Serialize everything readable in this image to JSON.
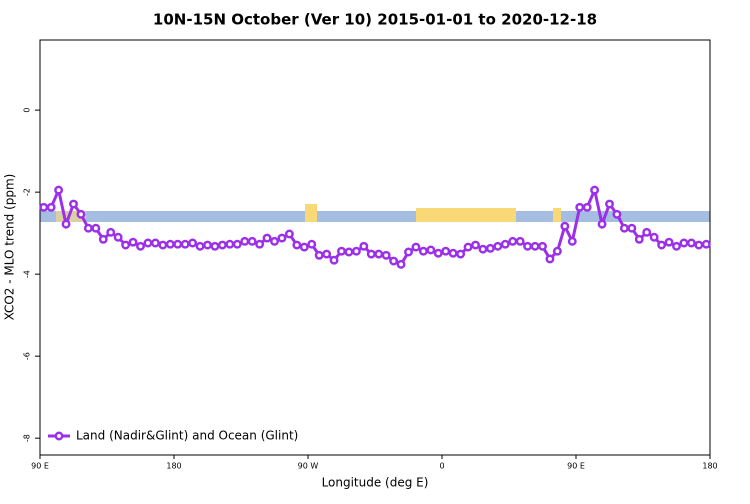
{
  "chart_data": {
    "type": "line",
    "title": "10N-15N October (Ver 10)   2015-01-01 to 2020-12-18",
    "x_label": "Longitude (deg E)",
    "y_label": "XCO2 - MLO trend (ppm)",
    "xlim": [
      90,
      540
    ],
    "ylim": [
      -8.41,
      1.71
    ],
    "xticks": [
      {
        "value": 90,
        "label": "90 E"
      },
      180,
      {
        "value": 270,
        "label": "90 W"
      },
      {
        "value": 360,
        "label": "0"
      },
      {
        "value": 450,
        "label": "90 E"
      },
      {
        "value": 540,
        "label": "180"
      }
    ],
    "yticks": [
      0,
      -2,
      -4,
      -6,
      -8
    ],
    "legend": "bottom-left",
    "x": [
      92.5,
      97.5,
      102.5,
      107.5,
      112.5,
      117.5,
      122.5,
      127.5,
      132.5,
      137.5,
      142.5,
      147.5,
      152.5,
      157.5,
      162.5,
      167.5,
      172.5,
      177.5,
      182.5,
      187.5,
      192.5,
      197.5,
      202.5,
      207.5,
      212.5,
      217.5,
      222.5,
      227.5,
      232.5,
      237.5,
      242.5,
      247.5,
      252.5,
      257.5,
      262.5,
      267.5,
      272.5,
      277.5,
      282.5,
      287.5,
      292.5,
      297.5,
      302.5,
      307.5,
      312.5,
      317.5,
      322.5,
      327.5,
      332.5,
      337.5,
      342.5,
      347.5,
      352.5,
      357.5,
      362.5,
      367.5,
      372.5,
      377.5,
      382.5,
      387.5,
      392.5,
      397.5,
      402.5,
      407.5,
      412.5,
      417.5,
      422.5,
      427.5,
      432.5,
      437.5,
      442.5,
      447.5,
      452.5,
      457.5,
      462.5,
      467.5,
      472.5,
      477.5,
      482.5,
      487.5,
      492.5,
      497.5,
      502.5,
      507.5,
      512.5,
      517.5,
      522.5,
      527.5,
      532.5,
      537.5
    ],
    "series": [
      {
        "name": "Land (Nadir&Glint) and Ocean (Glint)",
        "color": "#9b30e8",
        "values": [
          -2.37,
          -2.37,
          -1.95,
          -2.78,
          -2.29,
          -2.54,
          -2.88,
          -2.88,
          -3.15,
          -2.98,
          -3.1,
          -3.29,
          -3.22,
          -3.32,
          -3.24,
          -3.24,
          -3.29,
          -3.27,
          -3.27,
          -3.27,
          -3.24,
          -3.32,
          -3.29,
          -3.32,
          -3.29,
          -3.27,
          -3.27,
          -3.2,
          -3.2,
          -3.27,
          -3.12,
          -3.2,
          -3.12,
          -3.02,
          -3.29,
          -3.34,
          -3.27,
          -3.54,
          -3.51,
          -3.66,
          -3.44,
          -3.46,
          -3.44,
          -3.32,
          -3.51,
          -3.51,
          -3.54,
          -3.68,
          -3.76,
          -3.46,
          -3.34,
          -3.44,
          -3.41,
          -3.49,
          -3.44,
          -3.49,
          -3.51,
          -3.34,
          -3.29,
          -3.39,
          -3.37,
          -3.32,
          -3.27,
          -3.2,
          -3.2,
          -3.32,
          -3.32,
          -3.32,
          -3.63,
          -3.44,
          -2.83,
          -3.2,
          -2.37,
          -2.37,
          -1.95,
          -2.78,
          -2.29,
          -2.54,
          -2.88,
          -2.88,
          -3.15,
          -2.98,
          -3.1,
          -3.29,
          -3.22,
          -3.32,
          -3.24,
          -3.24,
          -3.29,
          -3.27
        ]
      }
    ]
  }
}
